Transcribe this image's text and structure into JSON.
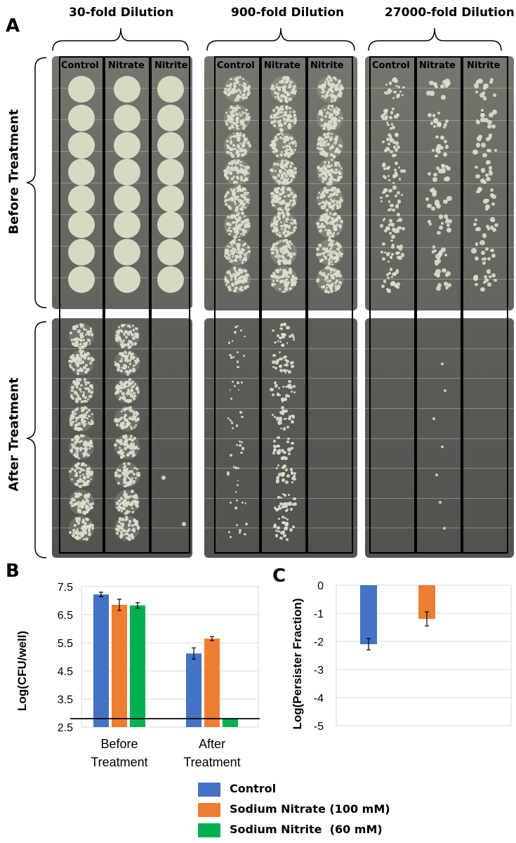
{
  "panel_a": {
    "label": "A",
    "dilutions": [
      "30-fold Dilution",
      "900-fold Dilution",
      "27000-fold Dilution"
    ],
    "columns": [
      "Control",
      "Nitrate",
      "Nitrite"
    ],
    "rows": [
      "Before Treatment",
      "After Treatment"
    ]
  },
  "panel_b": {
    "label": "B"
  },
  "panel_c": {
    "label": "C"
  },
  "legend": {
    "items": [
      {
        "label": "Control",
        "color": "#4472c4"
      },
      {
        "label": "Sodium Nitrate (100 mM)",
        "color": "#ed7d31"
      },
      {
        "label": "Sodium Nitrite  (60 mM)",
        "color": "#00b050"
      }
    ]
  },
  "chart_data": [
    {
      "type": "bar",
      "ylabel": "Log(CFU/well)",
      "ylim": [
        2.5,
        7.5
      ],
      "yticks": [
        "7.5",
        "6.5",
        "5.5",
        "4.5",
        "3.5",
        "2.5"
      ],
      "categories": [
        "Before\nTreatment",
        "After\nTreatment"
      ],
      "series": [
        {
          "name": "Control",
          "values": [
            7.22,
            5.12
          ],
          "errors": [
            0.08,
            0.2
          ]
        },
        {
          "name": "Sodium Nitrate (100 mM)",
          "values": [
            6.85,
            5.65
          ],
          "errors": [
            0.2,
            0.07
          ]
        },
        {
          "name": "Sodium Nitrite  (60 mM)",
          "values": [
            6.83,
            2.8
          ],
          "errors": [
            0.1,
            0
          ]
        }
      ],
      "reference_line": 2.8,
      "grid": true
    },
    {
      "type": "bar",
      "ylabel": "Log(Persister Fraction)",
      "ylim": [
        -5,
        0
      ],
      "yticks": [
        "0",
        "-1",
        "-2",
        "-3",
        "-4",
        "-5"
      ],
      "series": [
        {
          "name": "Control",
          "values": [
            -2.1
          ],
          "errors": [
            0.2
          ]
        },
        {
          "name": "Sodium Nitrate (100 mM)",
          "values": [
            -1.2
          ],
          "errors": [
            0.25
          ]
        }
      ],
      "grid": true
    }
  ]
}
